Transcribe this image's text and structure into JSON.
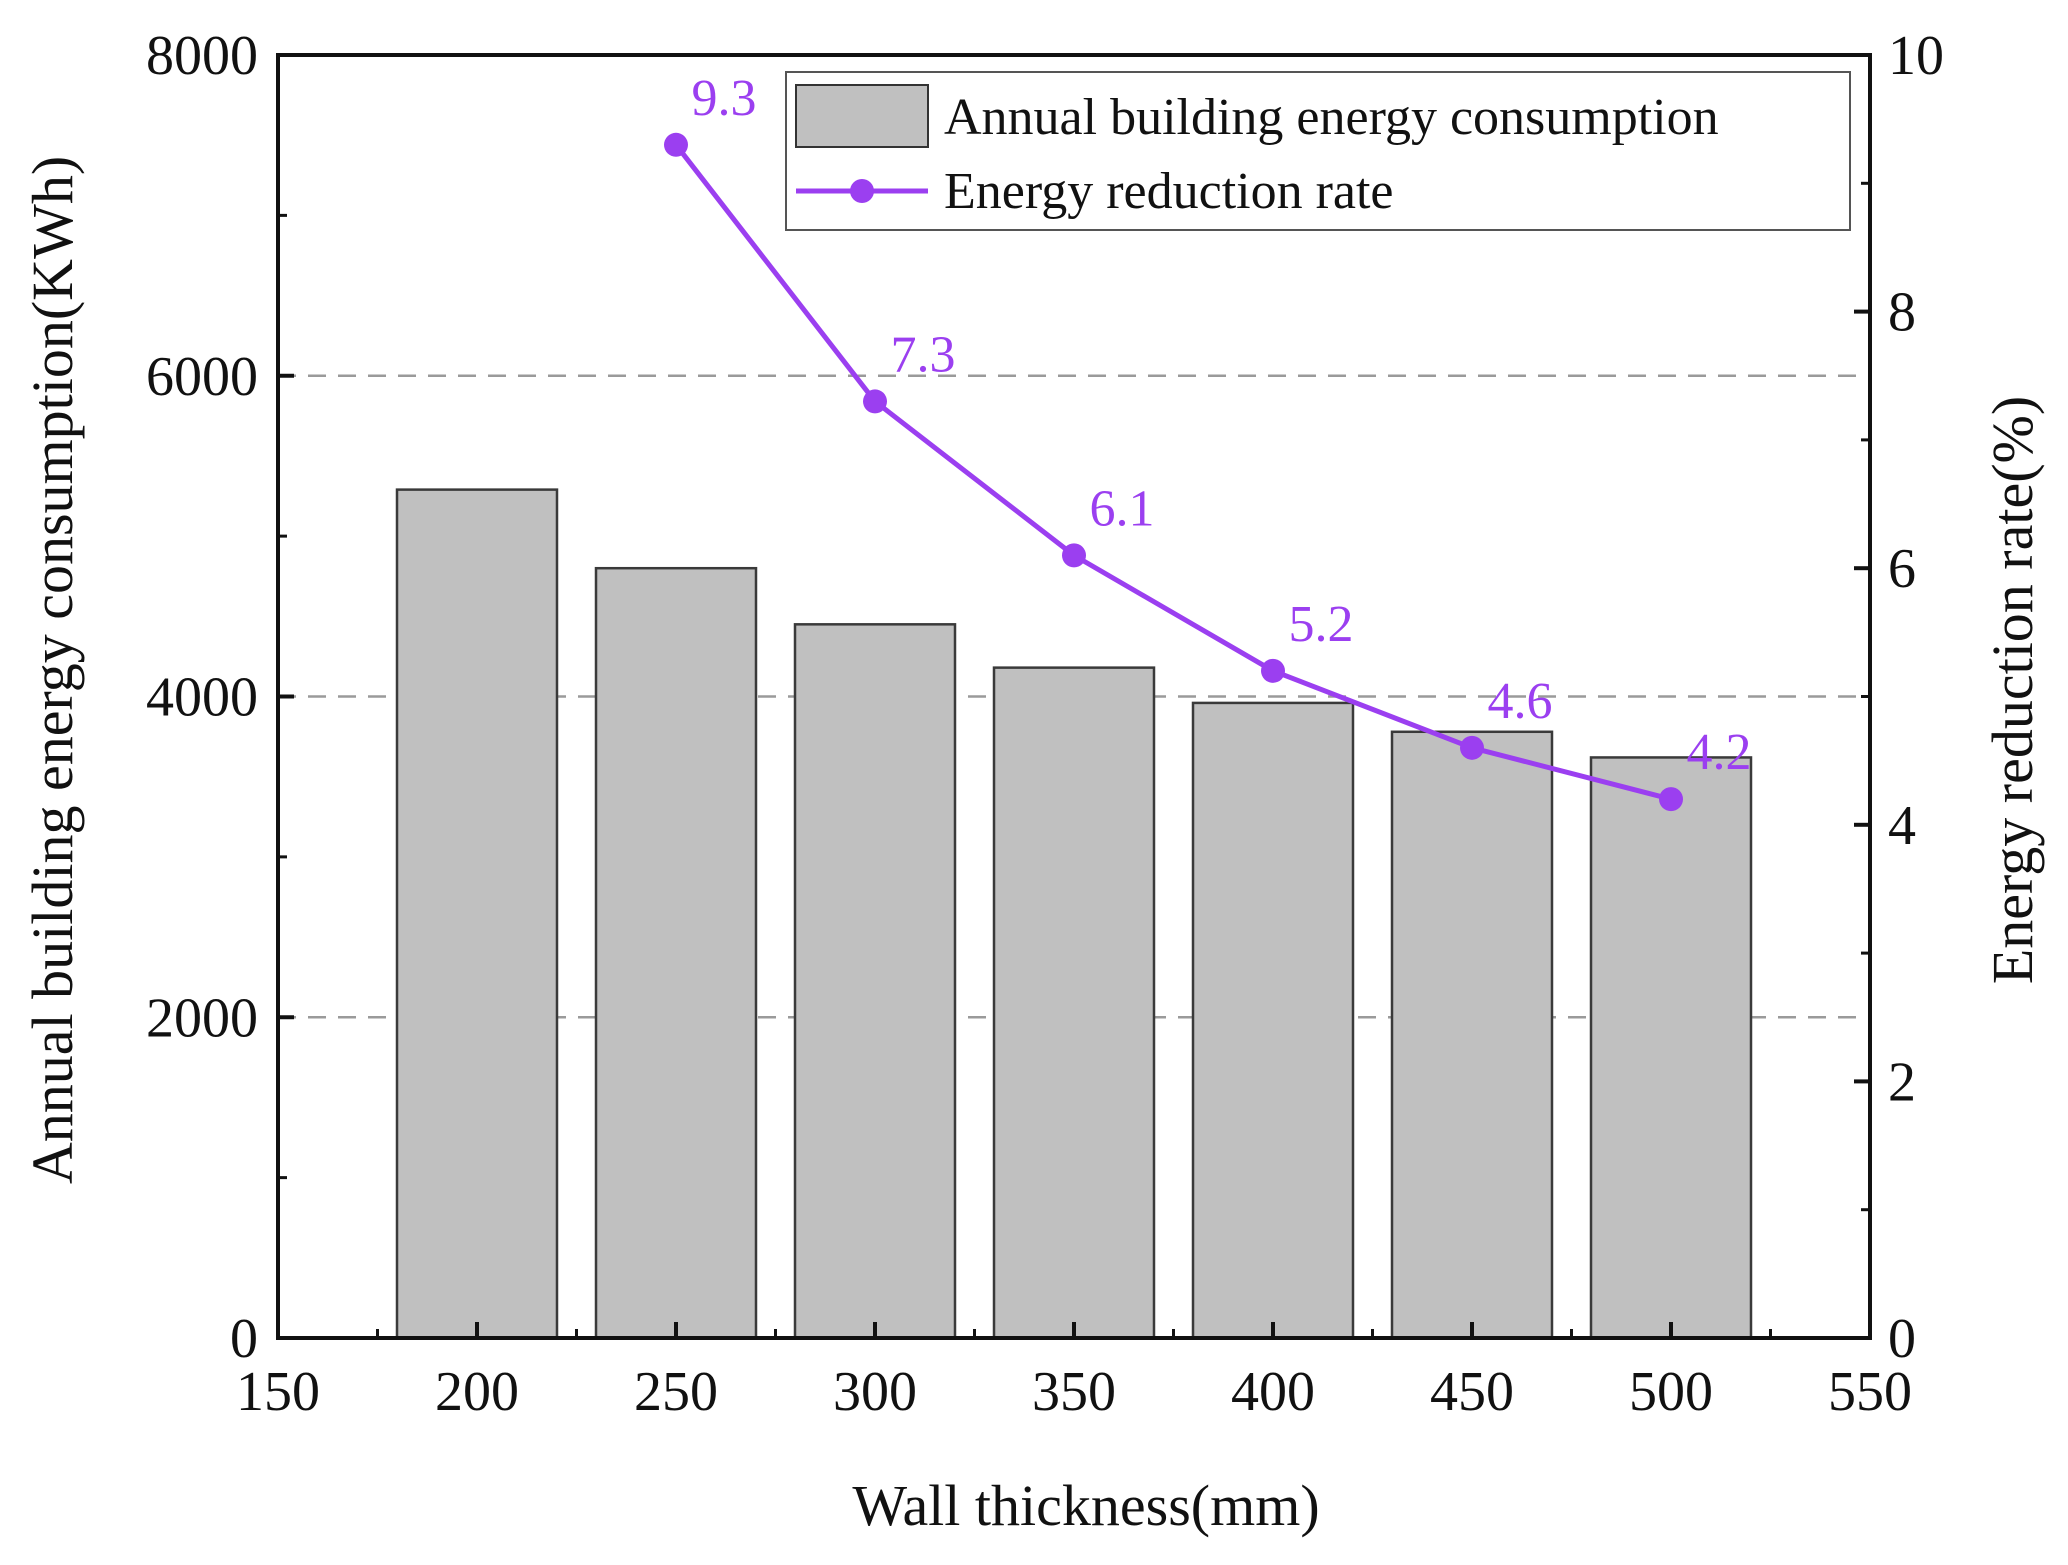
{
  "chart_data": {
    "type": "bar",
    "title": "",
    "xlabel": "Wall thickness(mm)",
    "ylabel": "Annual building energy consumption(KWh)",
    "y2label": "Energy reduction rate(%)",
    "xlim": [
      150,
      550
    ],
    "ylim": [
      0,
      8000
    ],
    "y2lim": [
      0,
      10
    ],
    "x_ticks": [
      "150",
      "200",
      "250",
      "300",
      "350",
      "400",
      "450",
      "500",
      "550"
    ],
    "y_ticks": [
      "0",
      "2000",
      "4000",
      "6000",
      "8000"
    ],
    "y2_ticks": [
      "0",
      "2",
      "4",
      "6",
      "8",
      "10"
    ],
    "grid": "horizontal dashed at 2000, 4000, 6000",
    "legend_position": "top-right",
    "colors": {
      "bar": "#c0c0c0",
      "line": "#9b3ff0",
      "grid": "#9a9a9a",
      "axis": "#111111"
    },
    "series": [
      {
        "name": "Annual building energy consumption",
        "type": "bar",
        "axis": "left",
        "x": [
          200,
          250,
          300,
          350,
          400,
          450,
          500
        ],
        "values": [
          5290,
          4800,
          4450,
          4180,
          3960,
          3780,
          3620
        ]
      },
      {
        "name": "Energy reduction rate",
        "type": "line",
        "axis": "right",
        "x": [
          250,
          300,
          350,
          400,
          450,
          500
        ],
        "values": [
          9.3,
          7.3,
          6.1,
          5.2,
          4.6,
          4.2
        ],
        "labels": [
          "9.3",
          "7.3",
          "6.1",
          "5.2",
          "4.6",
          "4.2"
        ]
      }
    ]
  }
}
